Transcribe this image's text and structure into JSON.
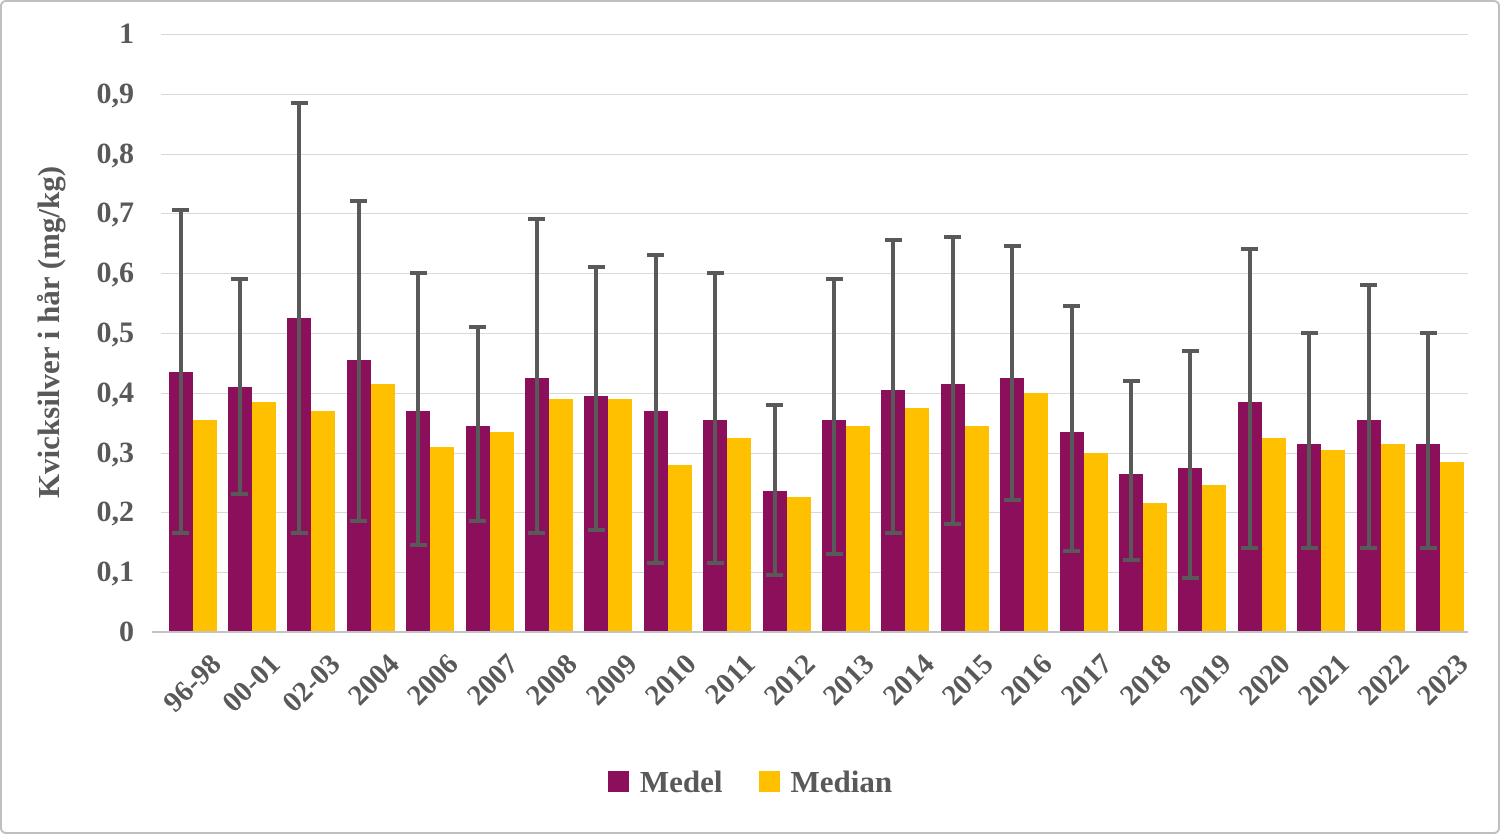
{
  "figure": {
    "background": "#FFFFFF",
    "border_color": "#BFBFBF"
  },
  "styles": {
    "grid_color": "#D9D9D9",
    "axis_line_color": "#C3C3C3",
    "text_color": "#595959",
    "error_bar_color": "#595959"
  },
  "chart_data": {
    "type": "bar",
    "title": "",
    "xlabel": "",
    "ylabel": "Kvicksilver i hår (mg/kg)",
    "ylim": [
      0,
      1
    ],
    "ytick_step": 0.1,
    "ytick_labels": [
      "0",
      "0,1",
      "0,2",
      "0,3",
      "0,4",
      "0,5",
      "0,6",
      "0,7",
      "0,8",
      "0,9",
      "1"
    ],
    "decimal_separator": ",",
    "grid": "horizontal",
    "legend_position": "bottom",
    "categories": [
      "96-98",
      "00-01",
      "02-03",
      "2004",
      "2006",
      "2007",
      "2008",
      "2009",
      "2010",
      "2011",
      "2012",
      "2013",
      "2014",
      "2015",
      "2016",
      "2017",
      "2018",
      "2019",
      "2020",
      "2021",
      "2022",
      "2023"
    ],
    "series": [
      {
        "name": "Medel",
        "color": "#8B0F5B",
        "values": [
          0.435,
          0.41,
          0.525,
          0.455,
          0.37,
          0.345,
          0.425,
          0.395,
          0.37,
          0.355,
          0.235,
          0.355,
          0.405,
          0.415,
          0.425,
          0.335,
          0.265,
          0.275,
          0.385,
          0.315,
          0.355,
          0.315
        ],
        "error_bars": {
          "color": "#595959",
          "low": [
            0.165,
            0.23,
            0.165,
            0.185,
            0.145,
            0.185,
            0.165,
            0.17,
            0.115,
            0.115,
            0.095,
            0.13,
            0.165,
            0.18,
            0.22,
            0.135,
            0.12,
            0.09,
            0.14,
            0.14,
            0.14,
            0.14
          ],
          "high": [
            0.705,
            0.59,
            0.885,
            0.72,
            0.6,
            0.51,
            0.69,
            0.61,
            0.63,
            0.6,
            0.38,
            0.59,
            0.655,
            0.66,
            0.645,
            0.545,
            0.42,
            0.47,
            0.64,
            0.5,
            0.58,
            0.5
          ]
        }
      },
      {
        "name": "Median",
        "color": "#FFC000",
        "values": [
          0.355,
          0.385,
          0.37,
          0.415,
          0.31,
          0.335,
          0.39,
          0.39,
          0.28,
          0.325,
          0.225,
          0.345,
          0.375,
          0.345,
          0.4,
          0.3,
          0.215,
          0.245,
          0.325,
          0.305,
          0.315,
          0.285
        ]
      }
    ]
  }
}
